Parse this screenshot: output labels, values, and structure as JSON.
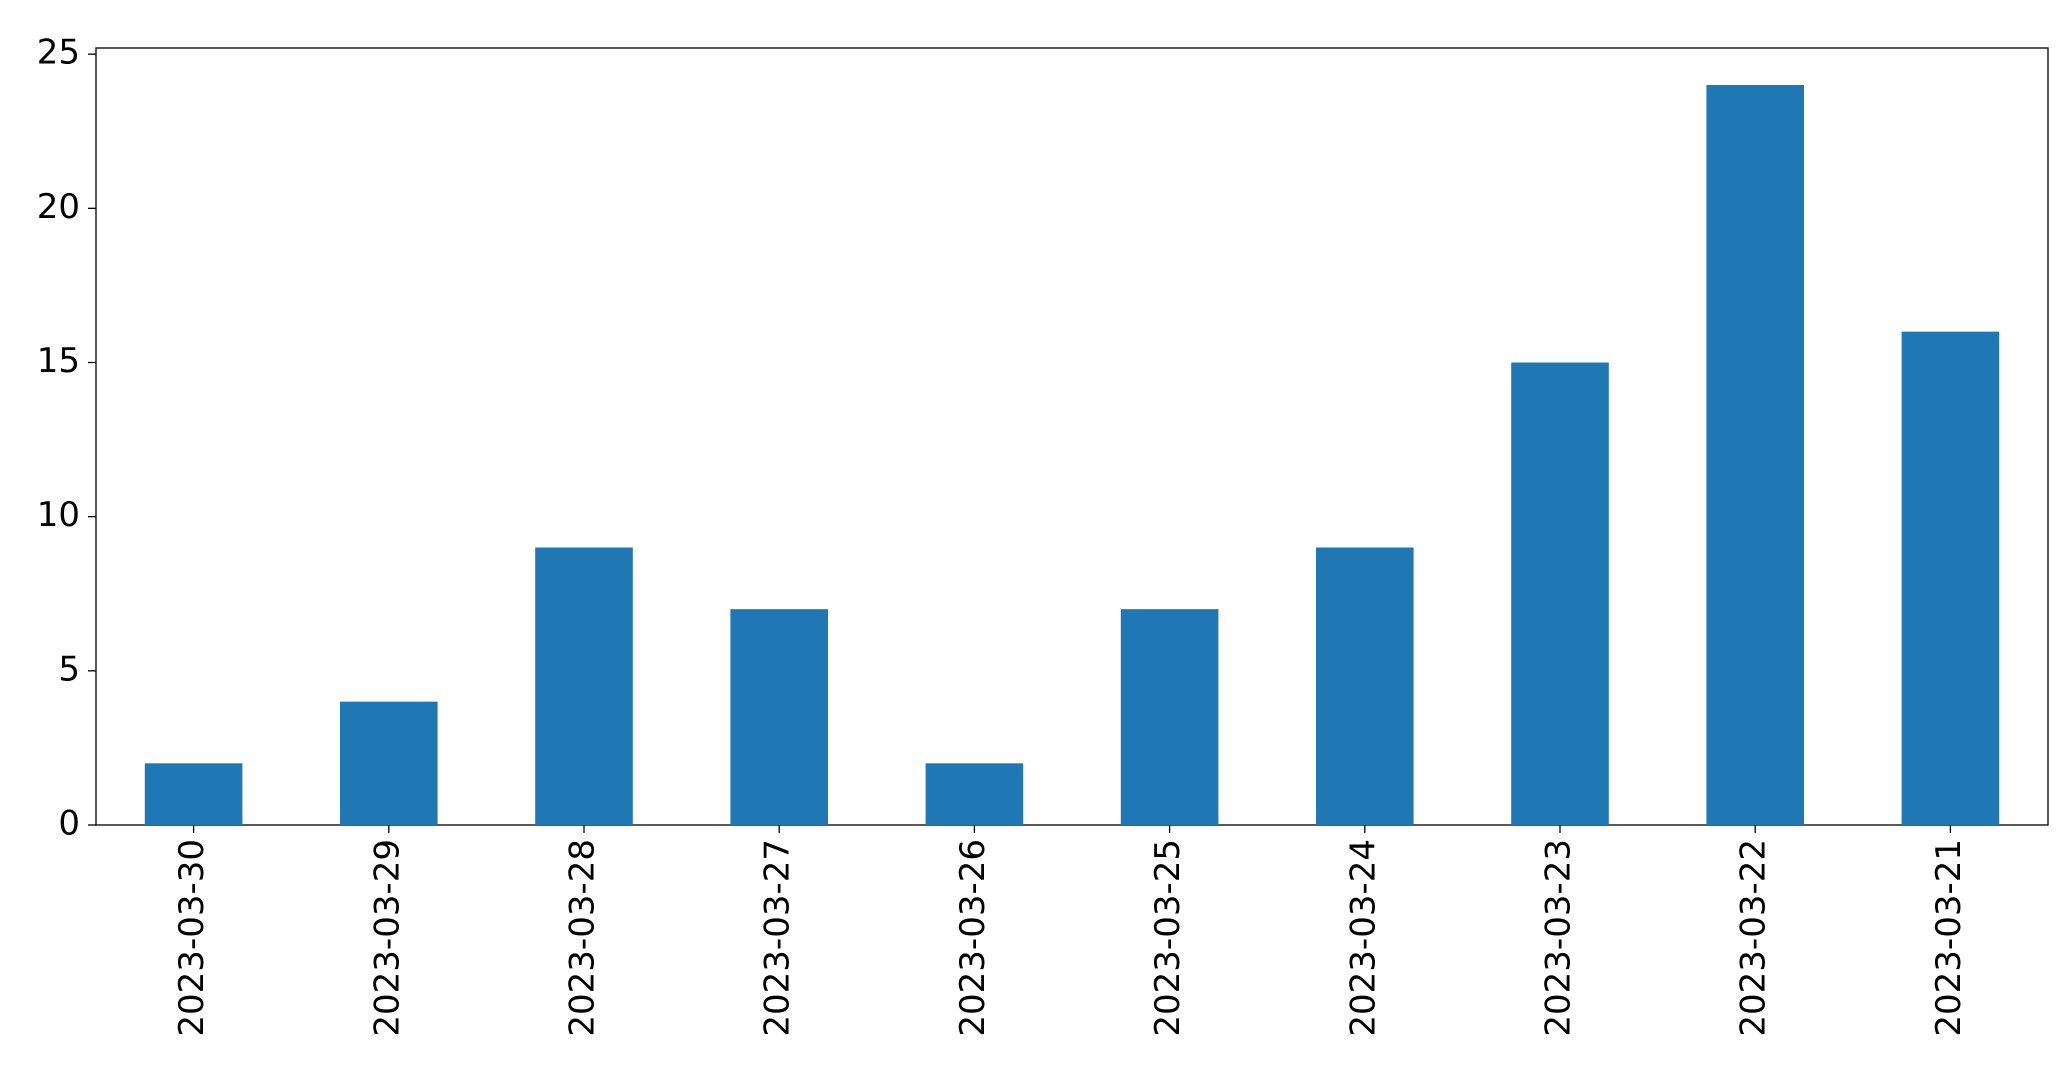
{
  "chart_data": {
    "type": "bar",
    "categories": [
      "2023-03-30",
      "2023-03-29",
      "2023-03-28",
      "2023-03-27",
      "2023-03-26",
      "2023-03-25",
      "2023-03-24",
      "2023-03-23",
      "2023-03-22",
      "2023-03-21"
    ],
    "values": [
      2,
      4,
      9,
      7,
      2,
      7,
      9,
      15,
      24,
      16
    ],
    "color": "#1f77b4",
    "ylim": [
      0,
      25.2
    ],
    "yticks": [
      0,
      5,
      10,
      15,
      20,
      25
    ],
    "grid": false
  }
}
